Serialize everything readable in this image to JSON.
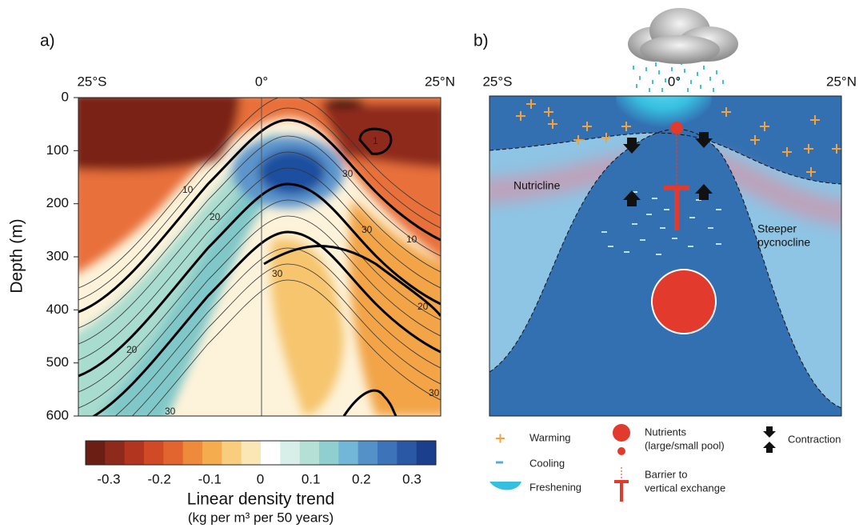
{
  "panel_a": {
    "label": "a)",
    "x_ticks": [
      "25°S",
      "0°",
      "25°N"
    ],
    "y_label": "Depth (m)",
    "y_ticks": [
      "0",
      "100",
      "200",
      "300",
      "400",
      "500",
      "600"
    ],
    "contour_labels": [
      "10",
      "20",
      "30",
      "30",
      "10",
      "20",
      "30",
      "20",
      "30",
      "30",
      "1"
    ],
    "colorbar": {
      "colors": [
        "#6b1f14",
        "#8e2a1c",
        "#b2361f",
        "#cf4a25",
        "#e2652f",
        "#ee8a3c",
        "#f4ac4f",
        "#f8cd7e",
        "#fbe6b6",
        "#ffffff",
        "#d8efe9",
        "#b5e0d6",
        "#90cfd0",
        "#72b6d8",
        "#5491c8",
        "#3d73b8",
        "#2a58a5",
        "#1b3f8c"
      ],
      "ticks": [
        "-0.3",
        "-0.2",
        "-0.1",
        "0",
        "0.1",
        "0.2",
        "0.3"
      ],
      "title": "Linear density trend",
      "units": "(kg per m³ per 50 years)"
    }
  },
  "panel_b": {
    "label": "b)",
    "x_ticks": [
      "25°S",
      "0°",
      "25°N"
    ],
    "nutricline": "Nutricline",
    "pycnocline": [
      "Steeper",
      "pycnocline"
    ]
  },
  "legend": {
    "warming": "Warming",
    "cooling": "Cooling",
    "freshening": "Freshening",
    "nutrients": [
      "Nutrients",
      "(large/small pool)"
    ],
    "barrier": [
      "Barrier to",
      "vertical exchange"
    ],
    "contraction": "Contraction"
  }
}
